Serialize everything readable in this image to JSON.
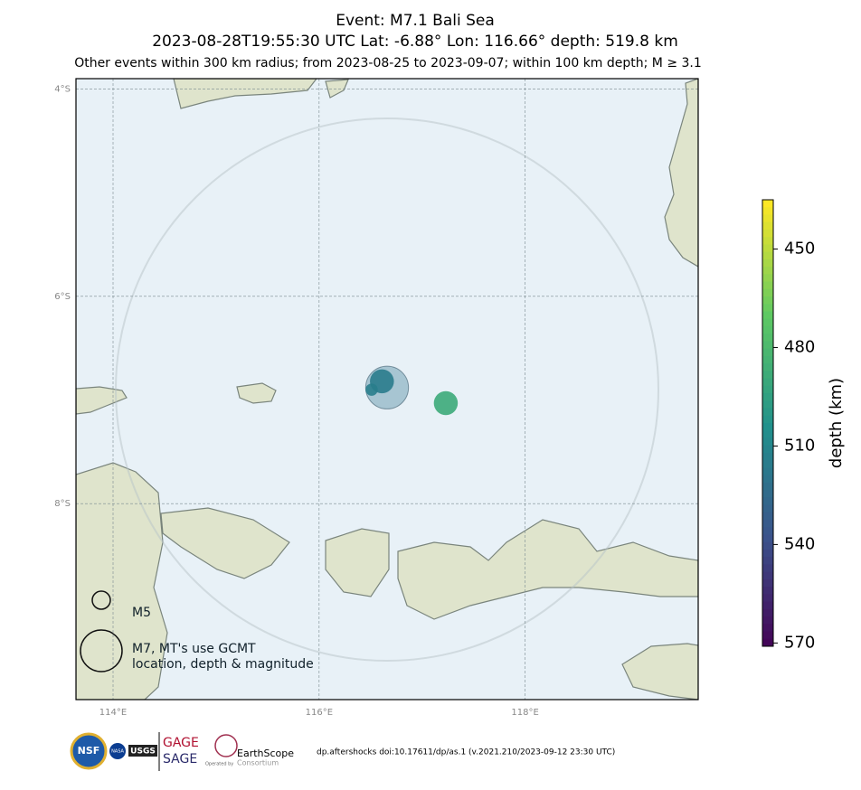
{
  "chart_data": {
    "type": "map",
    "title": "Event: M7.1 Bali Sea",
    "subtitle": "2023-08-28T19:55:30 UTC Lat: -6.88° Lon: 116.66° depth: 519.8 km",
    "note": "Other events within 300 km radius; from 2023-08-25 to 2023-09-07; within 100 km depth; M ≥ 3.1",
    "xlim": [
      113.64,
      119.68
    ],
    "ylim": [
      -9.89,
      -3.9
    ],
    "xticks": [
      {
        "value": 114,
        "label": "114°E"
      },
      {
        "value": 116,
        "label": "116°E"
      },
      {
        "value": 118,
        "label": "118°E"
      }
    ],
    "yticks": [
      {
        "value": -4,
        "label": "4°S"
      },
      {
        "value": -6,
        "label": "6°S"
      },
      {
        "value": -8,
        "label": "8°S"
      }
    ],
    "grid": true,
    "mainshock": {
      "lon": 116.66,
      "lat": -6.88,
      "depth": 519.8,
      "mag": 7.1
    },
    "events": [
      {
        "lon": 116.61,
        "lat": -6.82,
        "depth": 515,
        "mag": 5.5
      },
      {
        "lon": 116.51,
        "lat": -6.9,
        "depth": 514,
        "mag": 4.5
      },
      {
        "lon": 117.23,
        "lat": -7.03,
        "depth": 488,
        "mag": 5.5
      }
    ],
    "colorbar": {
      "label": "depth (km)",
      "lim": [
        435,
        571
      ],
      "ticks": [
        450,
        480,
        510,
        540,
        570
      ],
      "colormap": "viridis_r"
    },
    "legend": [
      {
        "mag": 5,
        "label": [
          "M5"
        ]
      },
      {
        "mag": 7,
        "label": [
          "M7, MT's use GCMT",
          "location, depth & magnitude"
        ]
      }
    ],
    "logos": {
      "nsf": "NSF",
      "nasa": "NASA",
      "usgs": "USGS",
      "gage": "GAGE",
      "sage": "SAGE",
      "earthscope": "EarthScope",
      "consortium": "Consortium",
      "operated": "Operated by"
    },
    "footer": "dp.aftershocks doi:10.17611/dp/as.1 (v.2021.210/2023-09-12 23:30 UTC)"
  }
}
